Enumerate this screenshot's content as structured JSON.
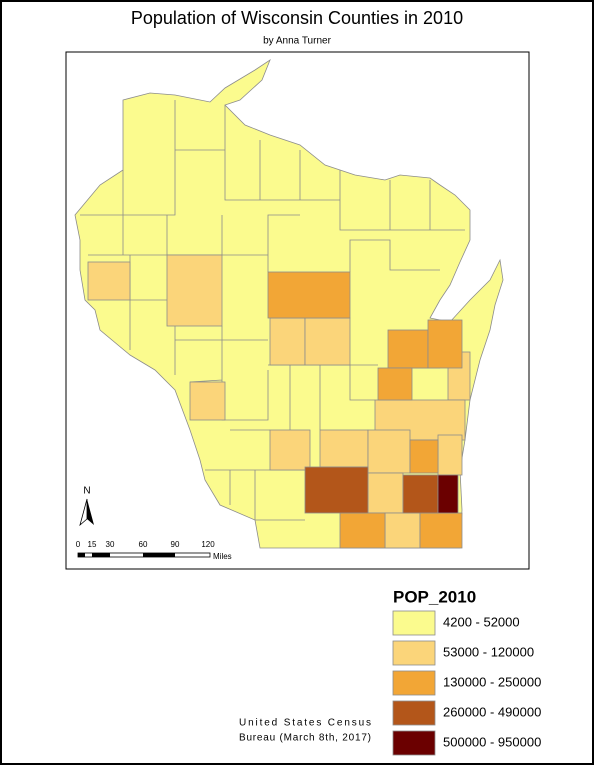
{
  "header": {
    "title": "Population of Wisconsin Counties in 2010",
    "subtitle": "by Anna Turner"
  },
  "legend": {
    "title": "POP_2010",
    "classes": [
      {
        "label": "4200 - 52000",
        "color": "#fbfb8e"
      },
      {
        "label": "53000 - 120000",
        "color": "#fbd57a"
      },
      {
        "label": "130000 - 250000",
        "color": "#f2a636"
      },
      {
        "label": "260000 - 490000",
        "color": "#b3561a"
      },
      {
        "label": "500000 - 950000",
        "color": "#6b0000"
      }
    ]
  },
  "north_arrow": {
    "label": "N"
  },
  "scale_bar": {
    "labels": [
      "0",
      "15",
      "30",
      "60",
      "90",
      "120"
    ],
    "unit": "Miles"
  },
  "credit": {
    "lines": [
      "United States Census",
      "Bureau (March 8th, 2017)"
    ]
  }
}
